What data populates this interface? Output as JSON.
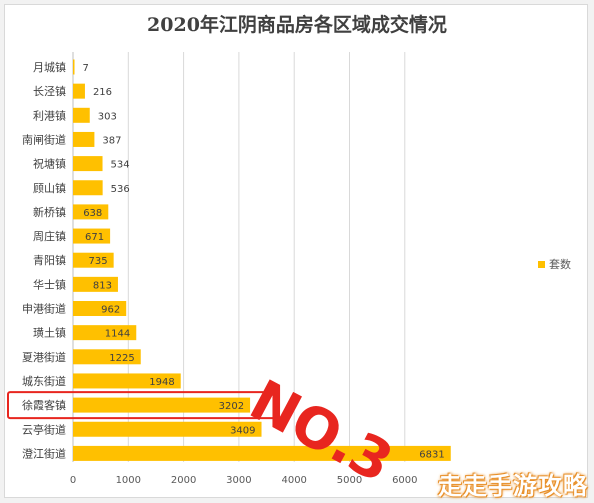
{
  "annotation_text": "NO.3",
  "watermark_text": "走走手游攻略",
  "colors": {
    "bar": "#ffc000",
    "highlight_box": "#e8261f",
    "grid": "#d9d9d9",
    "axis_text": "#595959"
  },
  "chart_data": {
    "type": "bar",
    "orientation": "horizontal",
    "title": "2020年江阴商品房各区域成交情况",
    "categories": [
      "月城镇",
      "长泾镇",
      "利港镇",
      "南闸街道",
      "祝塘镇",
      "顾山镇",
      "新桥镇",
      "周庄镇",
      "青阳镇",
      "华士镇",
      "申港街道",
      "璜土镇",
      "夏港街道",
      "城东街道",
      "徐霞客镇",
      "云亭街道",
      "澄江街道"
    ],
    "series": [
      {
        "name": "套数",
        "values": [
          7,
          216,
          303,
          387,
          534,
          536,
          638,
          671,
          735,
          813,
          962,
          1144,
          1225,
          1948,
          3202,
          3409,
          6831
        ]
      }
    ],
    "xlim": [
      0,
      7000
    ],
    "x_ticks": [
      0,
      1000,
      2000,
      3000,
      4000,
      5000,
      6000
    ],
    "grid": true,
    "legend_position": "right",
    "highlighted_category": "徐霞客镇"
  }
}
